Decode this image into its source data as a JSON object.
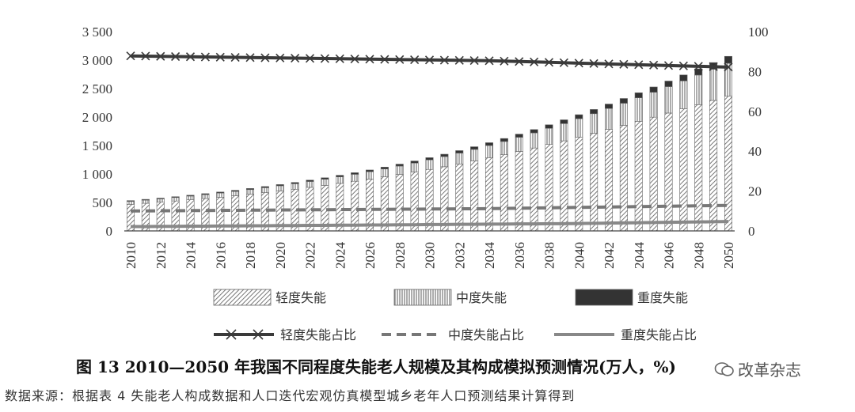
{
  "figure": {
    "caption": "图 13  2010—2050 年我国不同程度失能老人规模及其构成模拟预测情况(万人，%)",
    "source": "数据来源：根据表 4 失能老人构成数据和人口迭代宏观仿真模型城乡老年人口预测结果计算得到",
    "watermark": "改革杂志"
  },
  "chart_data": {
    "type": "bar",
    "stacked": true,
    "x": [
      2010,
      2011,
      2012,
      2013,
      2014,
      2015,
      2016,
      2017,
      2018,
      2019,
      2020,
      2021,
      2022,
      2023,
      2024,
      2025,
      2026,
      2027,
      2028,
      2029,
      2030,
      2031,
      2032,
      2033,
      2034,
      2035,
      2036,
      2037,
      2038,
      2039,
      2040,
      2041,
      2042,
      2043,
      2044,
      2045,
      2046,
      2047,
      2048,
      2049,
      2050
    ],
    "x_tick_labels": [
      "2010",
      "2012",
      "2014",
      "2016",
      "2018",
      "2020",
      "2022",
      "2024",
      "2026",
      "2028",
      "2030",
      "2032",
      "2034",
      "2036",
      "2038",
      "2040",
      "2042",
      "2044",
      "2046",
      "2048",
      "2050"
    ],
    "y_left": {
      "ylim": [
        0,
        3500
      ],
      "ticks": [
        0,
        500,
        1000,
        1500,
        2000,
        2500,
        3000,
        3500
      ],
      "tick_labels": [
        "0",
        "500",
        "1 000",
        "1 500",
        "2 000",
        "2 500",
        "3 000",
        "3 500"
      ]
    },
    "y_right": {
      "ylim": [
        0,
        100
      ],
      "ticks": [
        0,
        20,
        40,
        60,
        80,
        100
      ],
      "tick_labels": [
        "0",
        "20",
        "40",
        "60",
        "80",
        "100"
      ]
    },
    "series": [
      {
        "name": "轻度失能",
        "axis": "left",
        "kind": "bar",
        "pattern": "diagonal",
        "values": [
          467,
          485,
          504,
          525,
          546,
          568,
          592,
          617,
          644,
          672,
          701,
          732,
          765,
          799,
          835,
          872,
          910,
          950,
          992,
          1035,
          1080,
          1127,
          1176,
          1228,
          1282,
          1338,
          1396,
          1456,
          1518,
          1582,
          1648,
          1715,
          1784,
          1854,
          1925,
          1997,
          2070,
          2144,
          2218,
          2292,
          2366
        ]
      },
      {
        "name": "中度失能",
        "axis": "left",
        "kind": "bar",
        "pattern": "vertical",
        "values": [
          53,
          56,
          59,
          62,
          66,
          70,
          74,
          78,
          82,
          87,
          92,
          97,
          103,
          109,
          115,
          122,
          130,
          138,
          147,
          157,
          168,
          179,
          191,
          204,
          218,
          233,
          249,
          266,
          284,
          303,
          323,
          344,
          366,
          389,
          413,
          438,
          464,
          491,
          519,
          548,
          578
        ]
      },
      {
        "name": "重度失能",
        "axis": "left",
        "kind": "bar",
        "pattern": "solid",
        "values": [
          12,
          13,
          13,
          14,
          15,
          16,
          17,
          18,
          19,
          20,
          21,
          22,
          24,
          25,
          27,
          28,
          30,
          32,
          34,
          36,
          38,
          41,
          43,
          46,
          49,
          52,
          55,
          58,
          62,
          66,
          70,
          74,
          78,
          83,
          88,
          93,
          98,
          104,
          110,
          116,
          122
        ]
      },
      {
        "name": "轻度失能占比",
        "axis": "right",
        "kind": "line",
        "style": "solid-x",
        "values": [
          87.8,
          87.7,
          87.6,
          87.5,
          87.4,
          87.3,
          87.2,
          87.1,
          87.0,
          86.9,
          86.8,
          86.7,
          86.6,
          86.5,
          86.4,
          86.3,
          86.2,
          86.1,
          86.0,
          85.9,
          85.8,
          85.7,
          85.6,
          85.5,
          85.4,
          85.2,
          85.0,
          84.8,
          84.6,
          84.4,
          84.2,
          84.0,
          83.8,
          83.6,
          83.4,
          83.2,
          83.0,
          82.8,
          82.6,
          82.4,
          82.2
        ]
      },
      {
        "name": "中度失能占比",
        "axis": "right",
        "kind": "line",
        "style": "dashed",
        "values": [
          10.0,
          10.0,
          10.1,
          10.1,
          10.2,
          10.2,
          10.3,
          10.3,
          10.4,
          10.4,
          10.5,
          10.5,
          10.6,
          10.6,
          10.7,
          10.7,
          10.8,
          10.8,
          10.9,
          10.9,
          11.0,
          11.0,
          11.1,
          11.1,
          11.2,
          11.3,
          11.4,
          11.5,
          11.6,
          11.7,
          11.8,
          11.9,
          12.0,
          12.1,
          12.2,
          12.3,
          12.4,
          12.5,
          12.6,
          12.7,
          12.8
        ]
      },
      {
        "name": "重度失能占比",
        "axis": "right",
        "kind": "line",
        "style": "solid-gray",
        "values": [
          2.2,
          2.2,
          2.3,
          2.3,
          2.4,
          2.4,
          2.5,
          2.5,
          2.6,
          2.6,
          2.7,
          2.7,
          2.8,
          2.8,
          2.9,
          2.9,
          3.0,
          3.0,
          3.1,
          3.1,
          3.2,
          3.2,
          3.3,
          3.3,
          3.4,
          3.4,
          3.5,
          3.5,
          3.6,
          3.6,
          3.7,
          3.8,
          3.9,
          4.0,
          4.1,
          4.2,
          4.3,
          4.4,
          4.5,
          4.6,
          4.7
        ]
      }
    ],
    "legend_position": "bottom",
    "grid": false
  }
}
